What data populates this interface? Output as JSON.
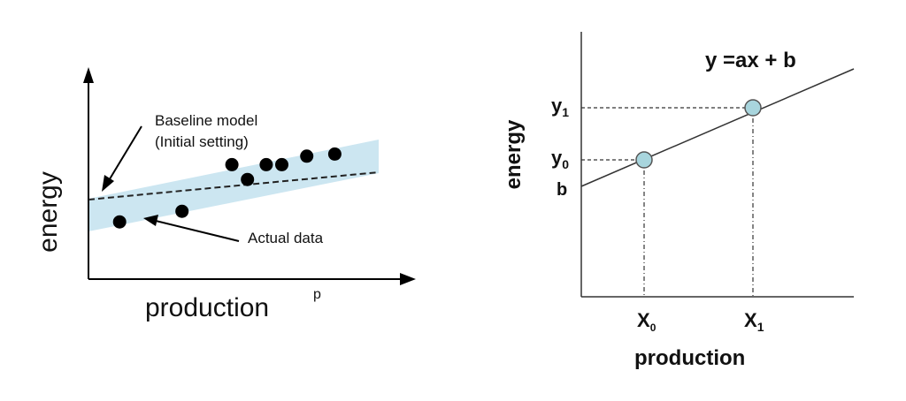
{
  "left_panel": {
    "y_axis_label": "energy",
    "x_axis_label": "production",
    "x_axis_marker": "p",
    "baseline_annotation": [
      "Baseline model",
      "(Initial setting)"
    ],
    "actual_annotation": "Actual data",
    "colors": {
      "band": "#c6e3f0",
      "points": "#000000",
      "lines": "#000000"
    }
  },
  "right_panel": {
    "y_axis_label": "energy",
    "x_axis_label": "production",
    "equation": "y =ax + b",
    "y_tick_labels": {
      "y1": "y",
      "y1_sub": "1",
      "y0": "y",
      "y0_sub": "0",
      "intercept": "b"
    },
    "x_tick_labels": {
      "x0": "X",
      "x0_sub": "0",
      "x1": "X",
      "x1_sub": "1"
    },
    "colors": {
      "point_fill": "#a8d5dd",
      "point_stroke": "#555555",
      "lines": "#333333"
    }
  },
  "chart_data": [
    {
      "type": "scatter",
      "title": "",
      "xlabel": "production",
      "ylabel": "energy",
      "series": [
        {
          "name": "Actual data",
          "x": [
            1.0,
            3.0,
            4.6,
            5.1,
            5.7,
            6.2,
            7.0,
            7.9
          ],
          "y": [
            2.7,
            3.2,
            5.4,
            4.7,
            5.4,
            5.4,
            5.8,
            5.9
          ]
        },
        {
          "name": "Baseline model",
          "type": "line",
          "x": [
            0,
            9.1
          ],
          "y": [
            3.7,
            5.2
          ]
        }
      ],
      "xlim": [
        0,
        10.5
      ],
      "ylim": [
        0,
        10
      ]
    },
    {
      "type": "line",
      "title": "",
      "xlabel": "production",
      "ylabel": "energy",
      "series": [
        {
          "name": "y =ax + b",
          "x": [
            0,
            10
          ],
          "y": [
            3.5,
            8.9
          ]
        }
      ],
      "points": [
        {
          "label": "x0 / y0",
          "x": 2.2,
          "y": 4.7
        },
        {
          "label": "x1 / y1",
          "x": 6.4,
          "y": 6.9
        }
      ],
      "xlim": [
        0,
        10
      ],
      "ylim": [
        0,
        10
      ]
    }
  ]
}
